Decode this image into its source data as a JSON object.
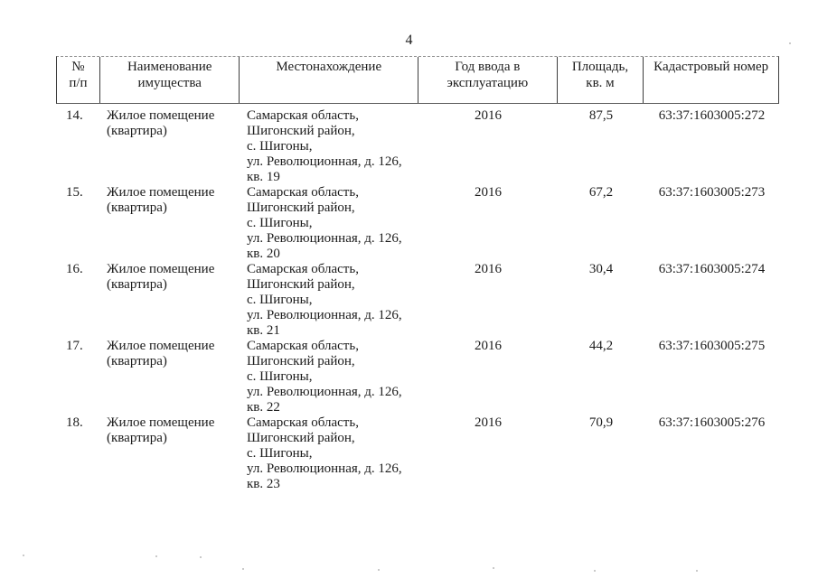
{
  "page": {
    "number": "4"
  },
  "table": {
    "headers": [
      "№\nп/п",
      "Наименование\nимущества",
      "Местонахождение",
      "Год ввода в\nэксплуатацию",
      "Площадь,\nкв. м",
      "Кадастровый номер"
    ],
    "rows": [
      {
        "num": "14.",
        "name": "Жилое помещение (квартира)",
        "location": "Самарская область,\nШигонский район,\nс. Шигоны,\nул. Революционная, д. 126,\nкв. 19",
        "year": "2016",
        "area": "87,5",
        "cadastral": "63:37:1603005:272"
      },
      {
        "num": "15.",
        "name": "Жилое помещение (квартира)",
        "location": "Самарская область,\nШигонский район,\nс. Шигоны,\nул. Революционная, д. 126,\nкв. 20",
        "year": "2016",
        "area": "67,2",
        "cadastral": "63:37:1603005:273"
      },
      {
        "num": "16.",
        "name": "Жилое помещение (квартира)",
        "location": "Самарская область,\nШигонский район,\nс. Шигоны,\nул. Революционная, д. 126,\nкв. 21",
        "year": "2016",
        "area": "30,4",
        "cadastral": "63:37:1603005:274"
      },
      {
        "num": "17.",
        "name": "Жилое помещение (квартира)",
        "location": "Самарская область,\nШигонский район,\nс. Шигоны,\nул. Революционная, д. 126,\nкв. 22",
        "year": "2016",
        "area": "44,2",
        "cadastral": "63:37:1603005:275"
      },
      {
        "num": "18.",
        "name": "Жилое помещение (квартира)",
        "location": "Самарская область,\nШигонский район,\nс. Шигоны,\nул. Революционная, д. 126,\nкв. 23",
        "year": "2016",
        "area": "70,9",
        "cadastral": "63:37:1603005:276"
      }
    ]
  },
  "colors": {
    "ink": "#1c1c1c",
    "border": "#3d3d3d",
    "faded_border": "#8f8f8f",
    "paper": "#ffffff"
  }
}
